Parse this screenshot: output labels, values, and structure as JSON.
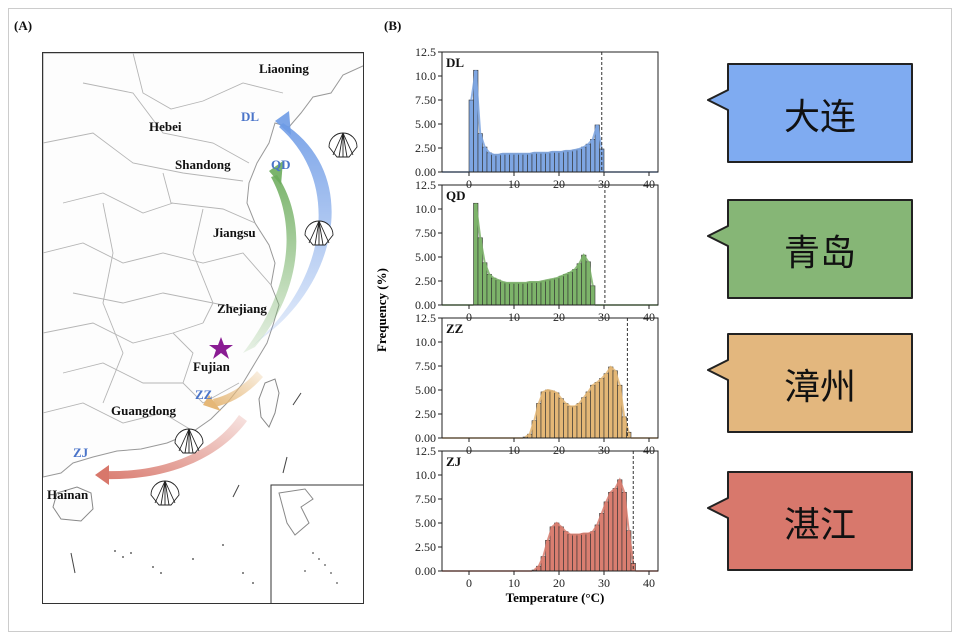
{
  "panels": {
    "a": "(A)",
    "b": "(B)"
  },
  "map": {
    "provinces": [
      "Liaoning",
      "Hebei",
      "Shandong",
      "Jiangsu",
      "Zhejiang",
      "Fujian",
      "Guangdong",
      "Hainan"
    ],
    "sites": [
      "DL",
      "QD",
      "ZZ",
      "ZJ"
    ],
    "colors": {
      "DL": "#6e9be6",
      "QD": "#6cac5c",
      "ZZ": "#e5b777",
      "ZJ": "#d8776b",
      "star": "#8a1c93"
    }
  },
  "chart_data": {
    "type": "histogram",
    "xlabel": "Temperature (°C)",
    "ylabel": "Frequency (%)",
    "xlim": [
      -6,
      42
    ],
    "ylim": [
      0,
      12.5
    ],
    "x_ticks": [
      "0",
      "10",
      "20",
      "30",
      "40"
    ],
    "y_ticks": [
      "0.00",
      "2.50",
      "5.00",
      "7.50",
      "10.0",
      "12.5"
    ],
    "bin_width": 1,
    "series": [
      {
        "name": "DL",
        "color": "#7ea6e2",
        "bin_start": 0,
        "values": [
          7.5,
          10.6,
          4.0,
          2.6,
          2.0,
          1.8,
          1.8,
          1.9,
          1.9,
          1.9,
          1.9,
          1.9,
          1.9,
          1.9,
          2.0,
          2.0,
          2.0,
          2.0,
          2.1,
          2.1,
          2.1,
          2.2,
          2.2,
          2.3,
          2.4,
          2.6,
          2.9,
          3.4,
          4.9,
          2.4
        ],
        "threshold": 29.5
      },
      {
        "name": "QD",
        "color": "#7db46a",
        "bin_start": 1,
        "values": [
          10.6,
          7.0,
          4.4,
          3.2,
          2.8,
          2.6,
          2.4,
          2.3,
          2.3,
          2.3,
          2.3,
          2.3,
          2.4,
          2.4,
          2.4,
          2.5,
          2.6,
          2.7,
          2.8,
          3.0,
          3.2,
          3.4,
          3.7,
          4.3,
          5.2,
          4.5,
          2.0
        ],
        "threshold": 30.2
      },
      {
        "name": "ZZ",
        "color": "#e4b776",
        "bin_start": 12,
        "values": [
          0.1,
          0.4,
          1.8,
          3.6,
          4.8,
          5.0,
          4.9,
          4.7,
          4.1,
          3.6,
          3.3,
          3.3,
          3.6,
          4.2,
          4.8,
          5.5,
          5.8,
          6.2,
          6.7,
          7.4,
          7.0,
          5.5,
          2.2,
          0.6
        ],
        "threshold": 35.2
      },
      {
        "name": "ZJ",
        "color": "#d97e70",
        "bin_start": 14,
        "values": [
          0.1,
          0.5,
          1.5,
          3.2,
          4.6,
          5.0,
          4.6,
          4.1,
          3.8,
          3.8,
          3.8,
          3.9,
          3.9,
          4.1,
          4.8,
          6.0,
          7.2,
          8.2,
          8.6,
          9.5,
          8.2,
          4.2,
          0.8
        ],
        "threshold": 36.5
      }
    ]
  },
  "callouts": [
    {
      "site": "DL",
      "label": "大连",
      "color": "#7fabf1"
    },
    {
      "site": "QD",
      "label": "青岛",
      "color": "#86b676"
    },
    {
      "site": "ZZ",
      "label": "漳州",
      "color": "#e3b77e"
    },
    {
      "site": "ZJ",
      "label": "湛江",
      "color": "#d8786c"
    }
  ]
}
